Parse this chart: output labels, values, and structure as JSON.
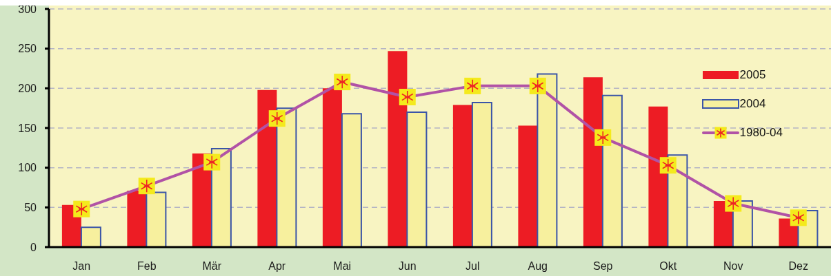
{
  "chart_data": {
    "type": "bar",
    "categories": [
      "Jan",
      "Feb",
      "Mär",
      "Apr",
      "Mai",
      "Jun",
      "Jul",
      "Aug",
      "Sep",
      "Okt",
      "Nov",
      "Dez"
    ],
    "series": [
      {
        "name": "2005",
        "color": "#ed1c24",
        "values": [
          53,
          71,
          118,
          198,
          200,
          247,
          179,
          153,
          214,
          177,
          58,
          36
        ]
      },
      {
        "name": "2004",
        "color": "#f7f09e",
        "values": [
          25,
          69,
          124,
          175,
          168,
          170,
          182,
          218,
          191,
          116,
          58,
          46
        ]
      },
      {
        "name": "1980-04",
        "type": "line",
        "color": "#b152a6",
        "values": [
          48,
          77,
          107,
          162,
          208,
          189,
          203,
          203,
          138,
          103,
          55,
          37
        ]
      }
    ],
    "ylim": [
      0,
      300
    ],
    "yticks": [
      0,
      50,
      100,
      150,
      200,
      250,
      300
    ],
    "grid": "y",
    "legend": "top right",
    "marker": "square",
    "line_style": "solid"
  }
}
